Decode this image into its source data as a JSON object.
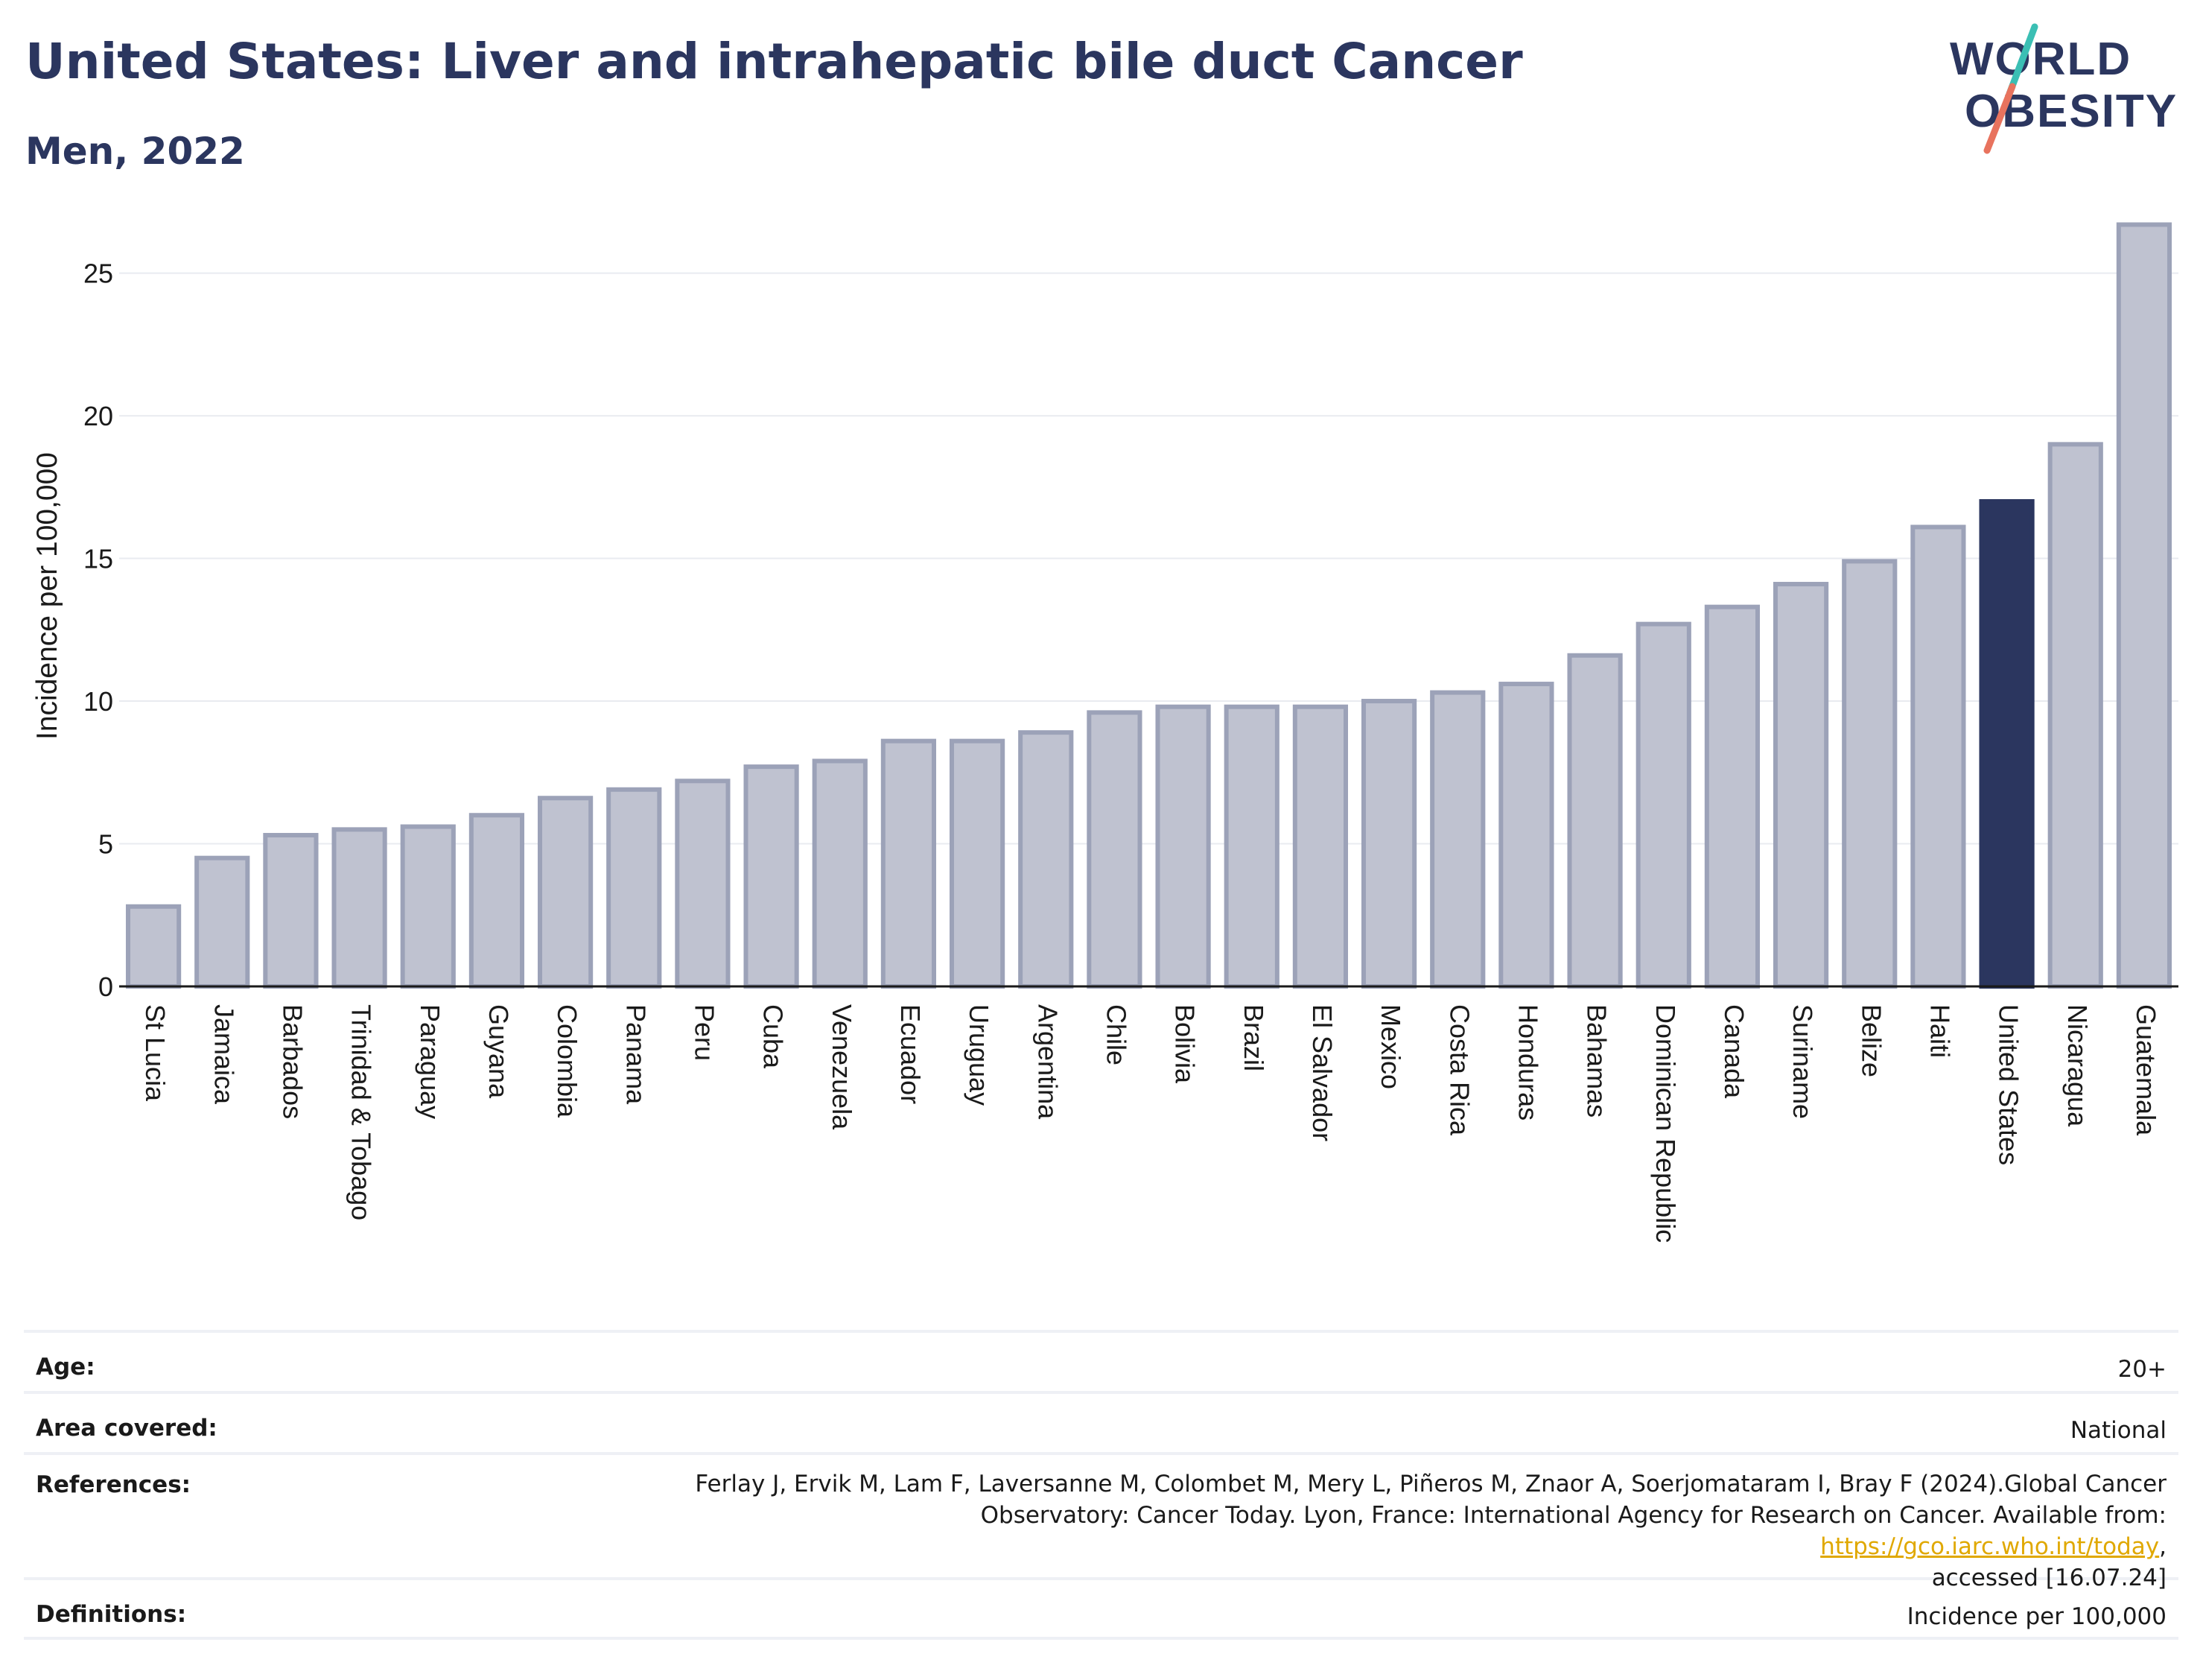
{
  "header": {
    "title": "United States: Liver and intrahepatic bile duct Cancer",
    "subtitle": "Men, 2022"
  },
  "logo": {
    "line1": "WORLD",
    "line2": "OBESITY"
  },
  "colors": {
    "highlight_bar": "#2b365f",
    "default_bar": "#bfc2d0",
    "default_bar_border": "#9ca2b8",
    "text_dark": "#2b365f",
    "link": "#e0a800"
  },
  "chart_data": {
    "type": "bar",
    "title": "United States: Liver and intrahepatic bile duct Cancer",
    "subtitle": "Men, 2022",
    "xlabel": "",
    "ylabel": "Incidence per 100,000",
    "ylim": [
      0,
      27
    ],
    "yticks": [
      0,
      5,
      10,
      15,
      20,
      25
    ],
    "grid": true,
    "highlight": "United States",
    "categories": [
      "St Lucia",
      "Jamaica",
      "Barbados",
      "Trinidad & Tobago",
      "Paraguay",
      "Guyana",
      "Colombia",
      "Panama",
      "Peru",
      "Cuba",
      "Venezuela",
      "Ecuador",
      "Uruguay",
      "Argentina",
      "Chile",
      "Bolivia",
      "Brazil",
      "El Salvador",
      "Mexico",
      "Costa Rica",
      "Honduras",
      "Bahamas",
      "Dominican Republic",
      "Canada",
      "Suriname",
      "Belize",
      "Haiti",
      "United States",
      "Nicaragua",
      "Guatemala"
    ],
    "values": [
      2.8,
      4.5,
      5.3,
      5.5,
      5.6,
      6.0,
      6.6,
      6.9,
      7.2,
      7.7,
      7.9,
      8.6,
      8.6,
      8.9,
      9.6,
      9.8,
      9.8,
      9.8,
      10.0,
      10.3,
      10.6,
      11.6,
      12.7,
      13.3,
      14.1,
      14.9,
      16.1,
      17.0,
      19.0,
      26.7
    ]
  },
  "meta": {
    "age_label": "Age:",
    "age_value": "20+",
    "area_label": "Area covered:",
    "area_value": "National",
    "references_label": "References:",
    "references_line1": "Ferlay J, Ervik M, Lam F, Laversanne M, Colombet M, Mery L, Piñeros M, Znaor A, Soerjomataram I, Bray F (2024).Global Cancer",
    "references_line2_prefix": "Observatory: Cancer Today. Lyon, France: International Agency for Research on Cancer. Available from: ",
    "references_link": "https://gco.iarc.who.int/today",
    "references_line2_suffix": ",",
    "references_line3": "accessed [16.07.24]",
    "definitions_label": "Definitions:",
    "definitions_value": "Incidence per 100,000"
  }
}
